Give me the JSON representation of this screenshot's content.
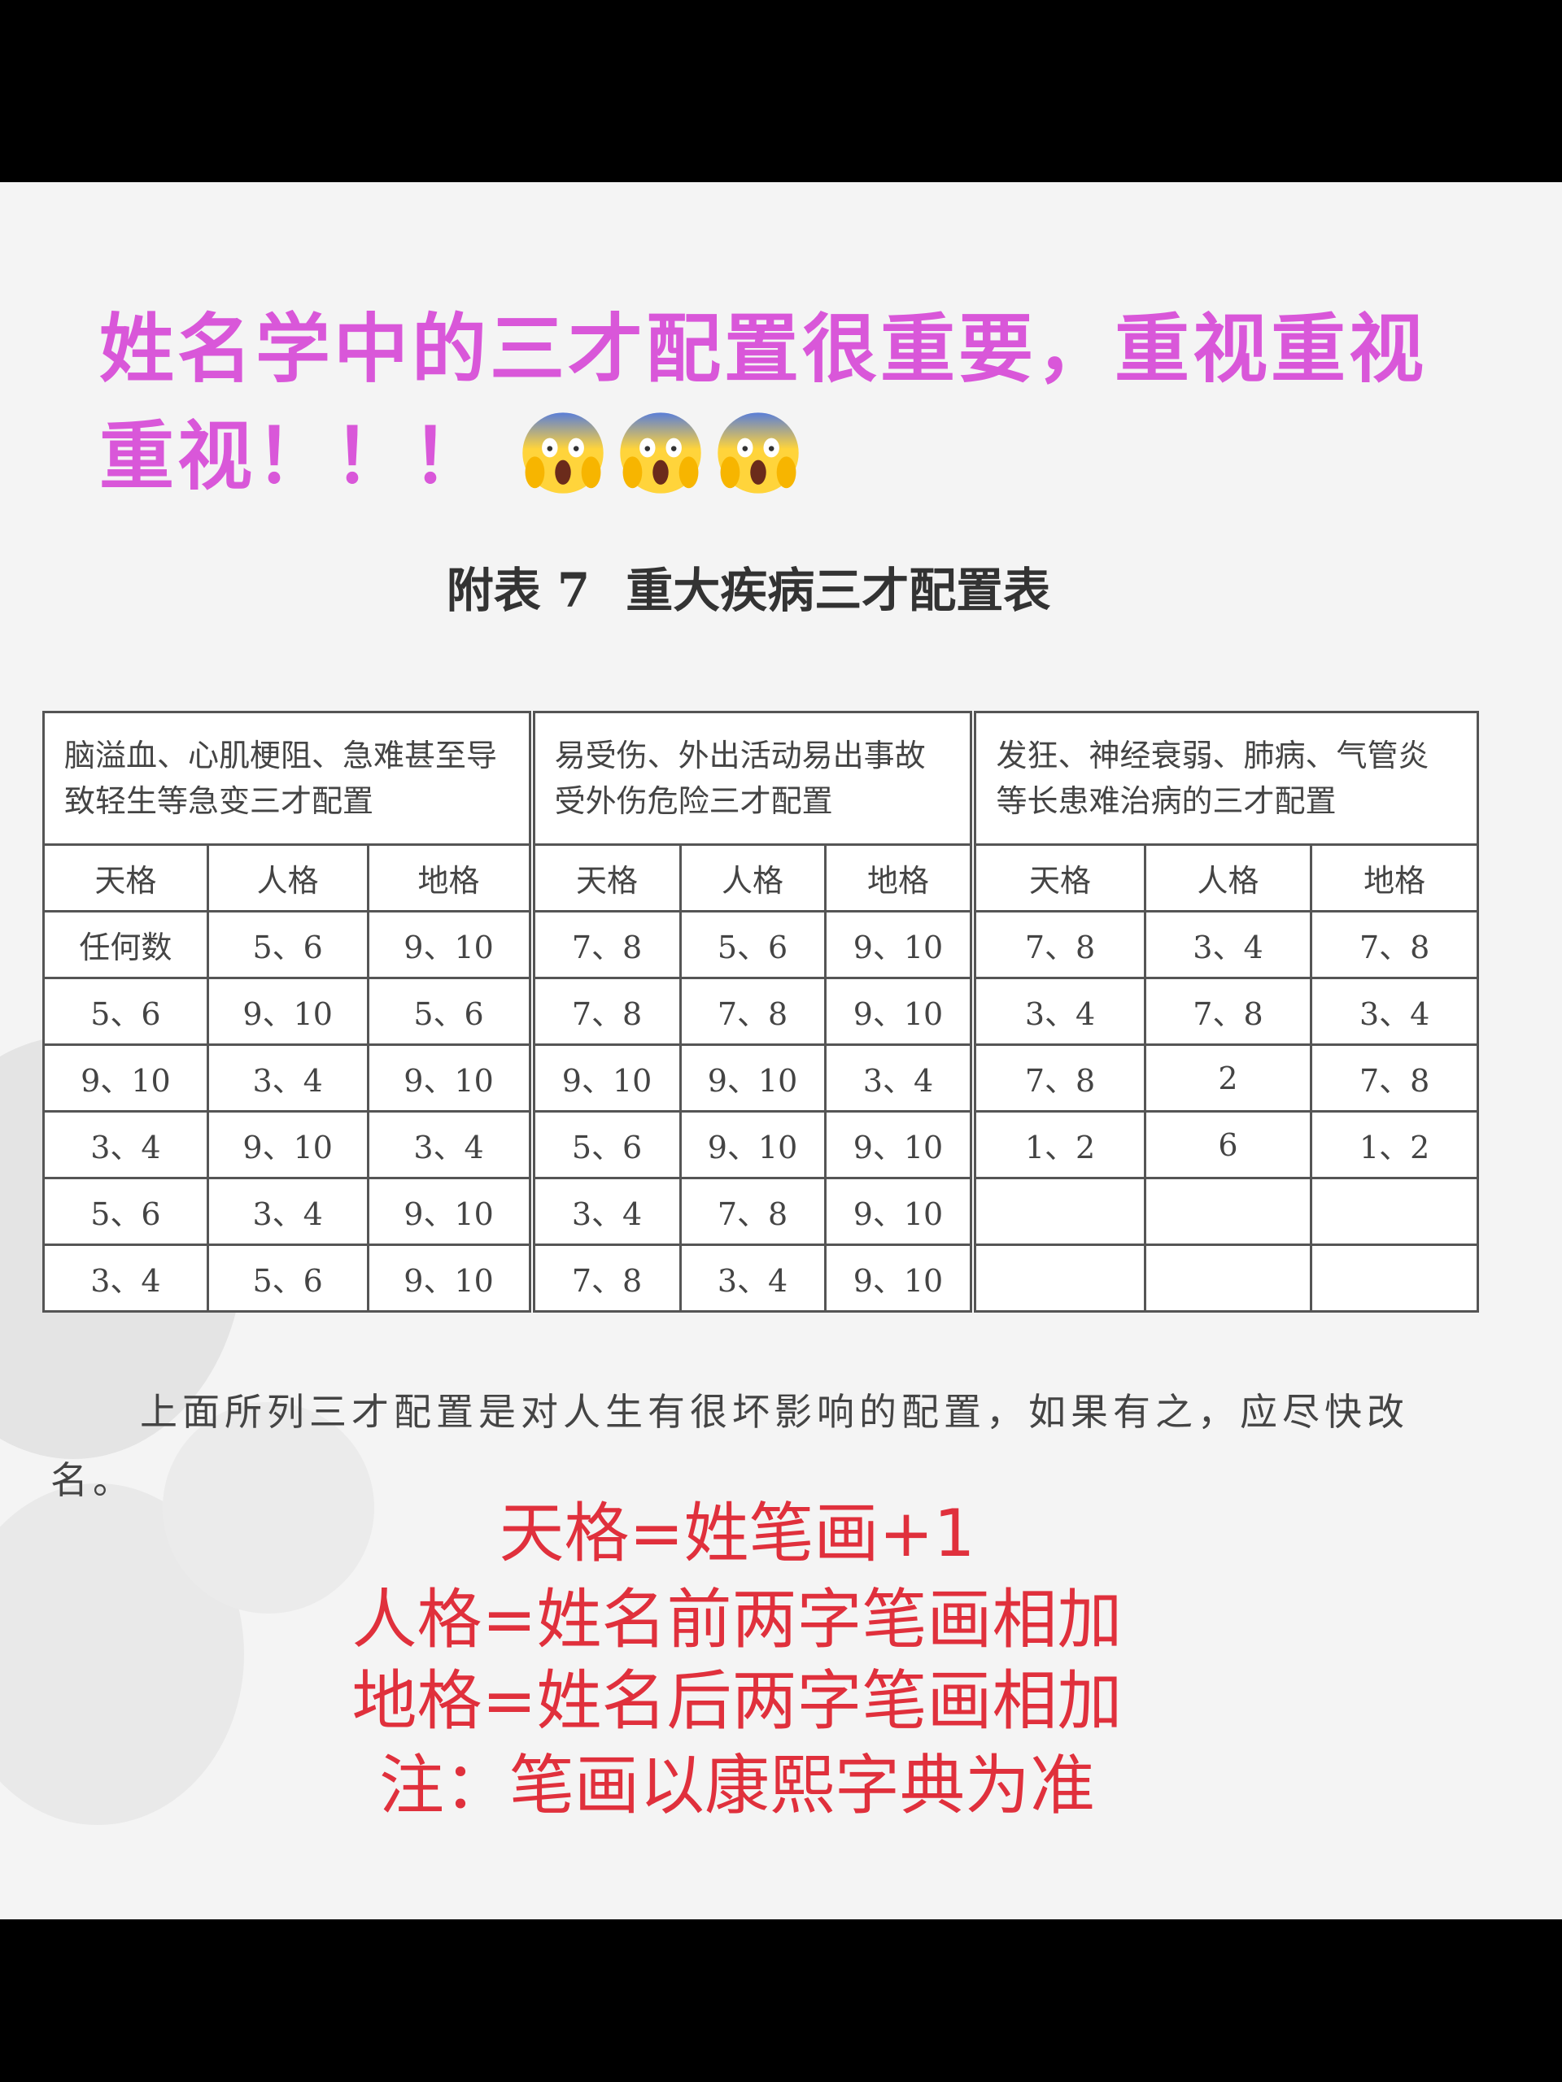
{
  "title": "姓名学中的三才配置很重要，重视重视重视！！！",
  "emoji_icons": [
    "face-screaming-in-fear",
    "face-screaming-in-fear",
    "face-screaming-in-fear"
  ],
  "caption": {
    "label": "附表 7",
    "text": "重大疾病三才配置表"
  },
  "table": {
    "groups": [
      {
        "title": "脑溢血、心肌梗阻、急难甚至导致轻生等急变三才配置",
        "headers": [
          "天格",
          "人格",
          "地格"
        ],
        "rows": [
          [
            "任何数",
            "5、6",
            "9、10"
          ],
          [
            "5、6",
            "9、10",
            "5、6"
          ],
          [
            "9、10",
            "3、4",
            "9、10"
          ],
          [
            "3、4",
            "9、10",
            "3、4"
          ],
          [
            "5、6",
            "3、4",
            "9、10"
          ],
          [
            "3、4",
            "5、6",
            "9、10"
          ]
        ]
      },
      {
        "title": "易受伤、外出活动易出事故受外伤危险三才配置",
        "headers": [
          "天格",
          "人格",
          "地格"
        ],
        "rows": [
          [
            "7、8",
            "5、6",
            "9、10"
          ],
          [
            "7、8",
            "7、8",
            "9、10"
          ],
          [
            "9、10",
            "9、10",
            "3、4"
          ],
          [
            "5、6",
            "9、10",
            "9、10"
          ],
          [
            "3、4",
            "7、8",
            "9、10"
          ],
          [
            "7、8",
            "3、4",
            "9、10"
          ]
        ]
      },
      {
        "title": "发狂、神经衰弱、肺病、气管炎等长患难治病的三才配置",
        "headers": [
          "天格",
          "人格",
          "地格"
        ],
        "rows": [
          [
            "7、8",
            "3、4",
            "7、8"
          ],
          [
            "3、4",
            "7、8",
            "3、4"
          ],
          [
            "7、8",
            "2",
            "7、8"
          ],
          [
            "1、2",
            "6",
            "1、2"
          ],
          [
            "",
            "",
            ""
          ],
          [
            "",
            "",
            ""
          ]
        ]
      }
    ]
  },
  "paragraph": "上面所列三才配置是对人生有很坏影响的配置，如果有之，应尽快改名。",
  "notes": [
    "天格=姓笔画+1",
    "人格=姓名前两字笔画相加",
    "地格=姓名后两字笔画相加",
    "注：笔画以康熙字典为准"
  ],
  "colors": {
    "title": "#d957d9",
    "notes": "#e0303c"
  }
}
